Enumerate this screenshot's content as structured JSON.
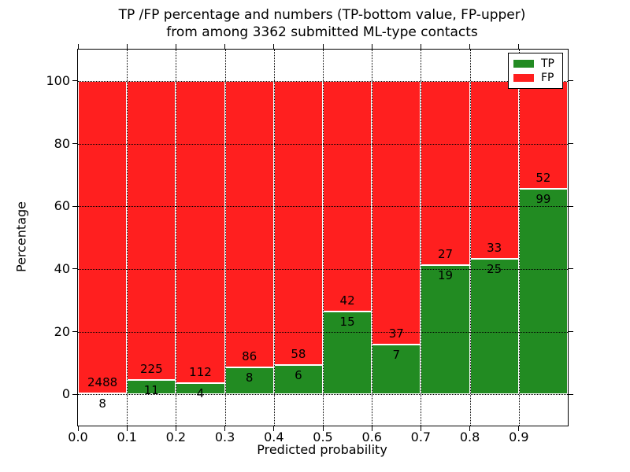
{
  "figure": {
    "title_line1": "TP /FP percentage and numbers (TP-bottom value, FP-upper)",
    "title_line2": "from among 3362 submitted ML-type contacts"
  },
  "axes": {
    "xlabel": "Predicted probability",
    "ylabel": "Percentage",
    "xtick_labels": [
      "0.0",
      "0.1",
      "0.2",
      "0.3",
      "0.4",
      "0.5",
      "0.6",
      "0.7",
      "0.8",
      "0.9"
    ],
    "ytick_labels": [
      "0",
      "20",
      "40",
      "60",
      "80",
      "100"
    ],
    "xlim": [
      0.0,
      1.0
    ],
    "ylim": [
      -10,
      110
    ],
    "grid": "dotted"
  },
  "legend": {
    "position": "upper right",
    "items": [
      {
        "label": "TP",
        "color": "#228b22"
      },
      {
        "label": "FP",
        "color": "#ff1f1f"
      }
    ]
  },
  "chart_data": {
    "type": "bar",
    "stacked": true,
    "normalized": "each bin scaled to 100%; segment heights are percent of bin total",
    "title": "TP /FP percentage and numbers (TP-bottom value, FP-upper) from among 3362 submitted ML-type contacts",
    "xlabel": "Predicted probability",
    "ylabel": "Percentage",
    "ylim": [
      -10,
      110
    ],
    "bin_edges": [
      0.0,
      0.1,
      0.2,
      0.3,
      0.4,
      0.5,
      0.6,
      0.7,
      0.8,
      0.9,
      1.0
    ],
    "categories": [
      "0.0-0.1",
      "0.1-0.2",
      "0.2-0.3",
      "0.3-0.4",
      "0.4-0.5",
      "0.5-0.6",
      "0.6-0.7",
      "0.7-0.8",
      "0.8-0.9",
      "0.9-1.0"
    ],
    "series": [
      {
        "name": "TP",
        "color": "#228b22",
        "counts": [
          8,
          11,
          4,
          8,
          6,
          15,
          7,
          19,
          25,
          99
        ]
      },
      {
        "name": "FP",
        "color": "#ff1f1f",
        "counts": [
          2488,
          225,
          112,
          86,
          58,
          42,
          37,
          27,
          33,
          52
        ]
      }
    ],
    "legend_position": "upper right"
  }
}
